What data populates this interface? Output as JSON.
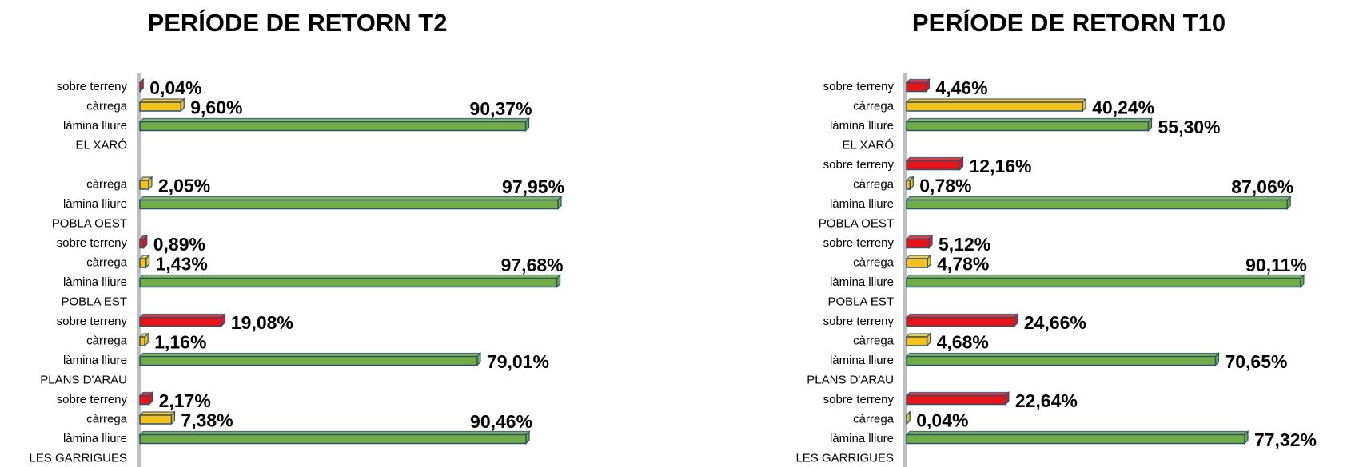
{
  "chart_data": [
    {
      "type": "bar",
      "title": "PERÍODE DE RETORN T2",
      "categories": [
        "EL XARÓ",
        "POBLA OEST",
        "POBLA EST",
        "PLANS D'ARAU",
        "LES GARRIGUES"
      ],
      "xlim": [
        0,
        100
      ],
      "series": [
        {
          "name": "sobre terreny",
          "color": "#e8141b",
          "values": [
            0.04,
            null,
            0.89,
            19.08,
            2.17
          ],
          "value_labels": [
            "0,04%",
            null,
            "0,89%",
            "19,08%",
            "2,17%"
          ]
        },
        {
          "name": "càrrega",
          "color": "#f5c21b",
          "values": [
            9.6,
            2.05,
            1.43,
            1.16,
            7.38
          ],
          "value_labels": [
            "9,60%",
            "2,05%",
            "1,43%",
            "1,16%",
            "7,38%"
          ]
        },
        {
          "name": "làmina lliure",
          "color": "#70ad47",
          "values": [
            90.37,
            97.95,
            97.68,
            79.01,
            90.46
          ],
          "value_labels": [
            "90,37%",
            "97,95%",
            "97,68%",
            "79,01%",
            "90,46%"
          ]
        }
      ]
    },
    {
      "type": "bar",
      "title": "PERÍODE DE RETORN T10",
      "categories": [
        "EL XARÓ",
        "POBLA OEST",
        "POBLA EST",
        "PLANS D'ARAU",
        "LES GARRIGUES"
      ],
      "xlim": [
        0,
        100
      ],
      "series": [
        {
          "name": "sobre terreny",
          "color": "#e8141b",
          "values": [
            4.46,
            12.16,
            5.12,
            24.66,
            22.64
          ],
          "value_labels": [
            "4,46%",
            "12,16%",
            "5,12%",
            "24,66%",
            "22,64%"
          ]
        },
        {
          "name": "càrrega",
          "color": "#f5c21b",
          "values": [
            40.24,
            0.78,
            4.78,
            4.68,
            0.04
          ],
          "value_labels": [
            "40,24%",
            "0,78%",
            "4,78%",
            "4,68%",
            "0,04%"
          ]
        },
        {
          "name": "làmina lliure",
          "color": "#70ad47",
          "values": [
            55.3,
            87.06,
            90.11,
            70.65,
            77.32
          ],
          "value_labels": [
            "55,30%",
            "87,06%",
            "90,11%",
            "70,65%",
            "77,32%"
          ]
        }
      ]
    }
  ]
}
